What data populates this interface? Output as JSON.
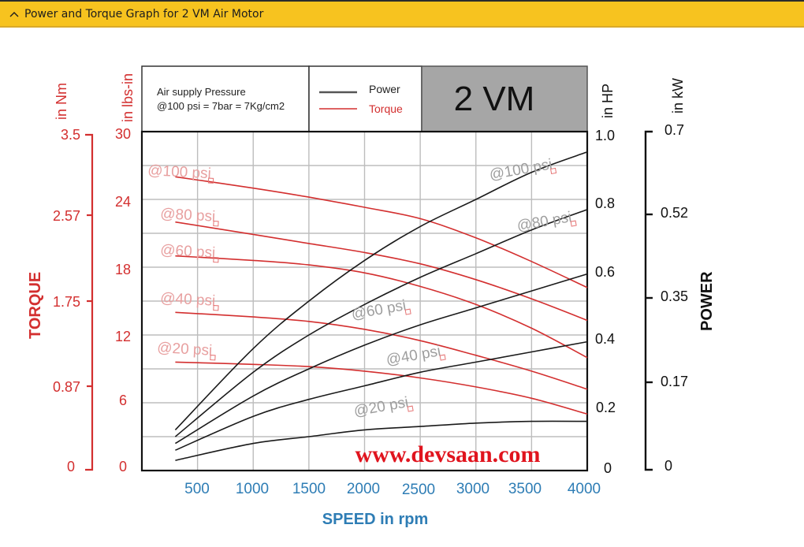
{
  "header": {
    "title": "Power and Torque Graph for 2 VM Air Motor",
    "toggle_icon": "chevron-up-icon"
  },
  "colors": {
    "header_bg": "#f7c31f",
    "torque": "#d32f2f",
    "power": "#1a1a1a",
    "speed_axis": "#2e7db5",
    "grid": "#bdbdbd",
    "model_box": "#a6a6a6"
  },
  "info_box": {
    "line1": "Air supply Pressure",
    "line2": "@100 psi = 7bar = 7Kg/cm2"
  },
  "legend": {
    "power": "Power",
    "torque": "Torque"
  },
  "model": "2 VM",
  "watermark": "www.devsaan.com",
  "axes": {
    "torque_nm_unit": "in Nm",
    "torque_lbs_unit": "in lbs-in",
    "torque_title": "TORQUE",
    "torque_nm_ticks": [
      "3.5",
      "2.57",
      "1.75",
      "0.87",
      "0"
    ],
    "torque_lbs_ticks": [
      "30",
      "24",
      "18",
      "12",
      "6",
      "0"
    ],
    "power_hp_unit": "in HP",
    "power_kw_unit": "in kW",
    "power_title": "POWER",
    "power_hp_ticks": [
      "1.0",
      "0.8",
      "0.6",
      "0.4",
      "0.2",
      "0"
    ],
    "power_kw_ticks": [
      "0.7",
      "0.52",
      "0.35",
      "0.17",
      "0"
    ],
    "speed_title": "SPEED in rpm",
    "speed_ticks": [
      "500",
      "1000",
      "1500",
      "2000",
      "2500",
      "3000",
      "3500",
      "4000"
    ]
  },
  "series_labels": {
    "torque": [
      "@100 psi",
      "@80 psi",
      "@60 psi",
      "@40 psi",
      "@20 psi"
    ],
    "power": [
      "@100 psi",
      "@80 psi",
      "@60 psi",
      "@40 psi",
      "@20 psi"
    ]
  },
  "chart_data": {
    "type": "line",
    "title": "Power and Torque Graph for 2 VM Air Motor",
    "xlabel": "SPEED in rpm",
    "ylabel_left": "TORQUE (in lbs-in / in Nm)",
    "ylabel_right": "POWER (in HP / in kW)",
    "xlim": [
      0,
      4000
    ],
    "ylim_torque_lbs_in": [
      0,
      30
    ],
    "ylim_torque_nm": [
      0,
      3.5
    ],
    "ylim_power_hp": [
      0,
      1.0
    ],
    "ylim_power_kw": [
      0,
      0.7
    ],
    "grid": true,
    "legend": [
      "Power",
      "Torque"
    ],
    "annotations": [
      "Air supply Pressure @100 psi = 7bar = 7Kg/cm2",
      "2 VM",
      "www.devsaan.com"
    ],
    "x": [
      300,
      1000,
      1500,
      2000,
      2500,
      3000,
      3500,
      4000
    ],
    "torque_series_lbs_in": [
      {
        "name": "@100 psi",
        "values": [
          26.0,
          25.0,
          24.2,
          23.3,
          22.3,
          20.6,
          18.5,
          16.2
        ]
      },
      {
        "name": "@80 psi",
        "values": [
          22.0,
          20.9,
          20.1,
          19.3,
          18.3,
          16.9,
          15.2,
          13.3
        ]
      },
      {
        "name": "@60 psi",
        "values": [
          19.0,
          18.6,
          18.2,
          17.5,
          16.3,
          14.7,
          12.6,
          10.0
        ]
      },
      {
        "name": "@40 psi",
        "values": [
          14.0,
          13.6,
          13.2,
          12.5,
          11.5,
          10.2,
          8.8,
          7.2
        ]
      },
      {
        "name": "@20 psi",
        "values": [
          9.6,
          9.4,
          9.2,
          8.8,
          8.2,
          7.4,
          6.4,
          5.0
        ]
      }
    ],
    "power_series_hp": [
      {
        "name": "@100 psi",
        "values": [
          0.12,
          0.36,
          0.5,
          0.62,
          0.72,
          0.8,
          0.88,
          0.94
        ]
      },
      {
        "name": "@80 psi",
        "values": [
          0.1,
          0.29,
          0.4,
          0.49,
          0.57,
          0.64,
          0.71,
          0.77
        ]
      },
      {
        "name": "@60 psi",
        "values": [
          0.08,
          0.22,
          0.3,
          0.37,
          0.43,
          0.48,
          0.53,
          0.58
        ]
      },
      {
        "name": "@40 psi",
        "values": [
          0.06,
          0.16,
          0.21,
          0.25,
          0.29,
          0.32,
          0.35,
          0.38
        ]
      },
      {
        "name": "@20 psi",
        "values": [
          0.03,
          0.08,
          0.1,
          0.12,
          0.13,
          0.14,
          0.145,
          0.145
        ]
      }
    ]
  }
}
